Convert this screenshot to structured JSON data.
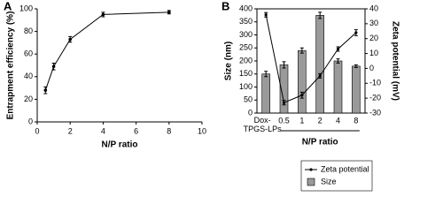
{
  "chart_data": [
    {
      "type": "line",
      "label": "A",
      "xlabel": "N/P ratio",
      "ylabel": "Entrapment efficiency (%)",
      "x": [
        0.5,
        1,
        2,
        4,
        8
      ],
      "values": [
        28,
        49,
        73,
        95,
        97
      ],
      "errors": [
        3,
        3,
        2.5,
        2,
        1.5
      ],
      "color": "#000000",
      "xlim": [
        0,
        10
      ],
      "xticks": [
        0,
        2,
        4,
        6,
        8,
        10
      ],
      "ylim": [
        0,
        100
      ],
      "yticks": [
        0,
        20,
        40,
        60,
        80,
        100
      ]
    },
    {
      "type": "bar",
      "label": "B",
      "xlabel": "N/P ratio",
      "ylabel": "Size (nm)",
      "y2label": "Zeta potential (mV)",
      "categories": [
        "Dox-TPGS-LPs",
        "0.5",
        "1",
        "2",
        "4",
        "8"
      ],
      "series": [
        {
          "name": "Zeta potential",
          "axis": "y2",
          "color": "#000000",
          "values": [
            36,
            -23,
            -18,
            -5,
            13,
            24
          ],
          "errors": [
            1.5,
            1.5,
            2,
            1.5,
            1.5,
            2
          ]
        },
        {
          "name": "Size",
          "color": "#9a9a9a",
          "values": [
            150,
            185,
            240,
            375,
            200,
            180
          ],
          "errors": [
            10,
            12,
            10,
            12,
            8,
            5
          ]
        }
      ],
      "ylim": [
        0,
        400
      ],
      "yticks": [
        0,
        50,
        100,
        150,
        200,
        250,
        300,
        350,
        400
      ],
      "y2lim": [
        -30,
        40
      ],
      "y2ticks": [
        -30,
        -20,
        -10,
        0,
        10,
        20,
        30,
        40
      ]
    }
  ]
}
